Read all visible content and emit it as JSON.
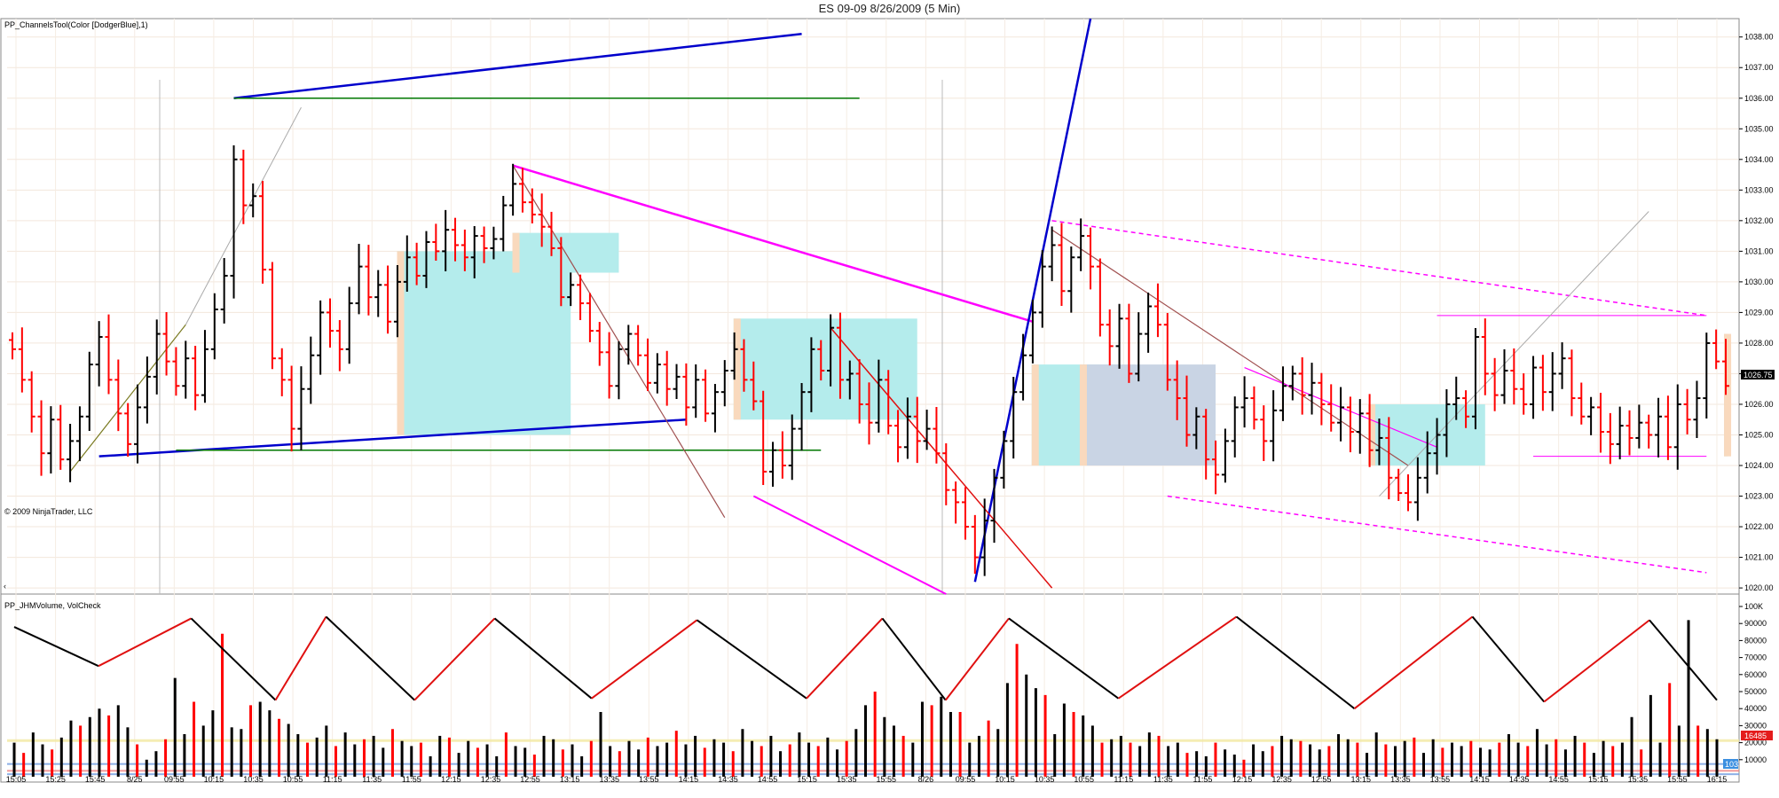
{
  "title": "ES 09-09  8/26/2009 (5 Min)",
  "price_panel": {
    "indicator_label": "PP_ChannelsTool(Color [DodgerBlue],1)",
    "copyright": "© 2009 NinjaTrader, LLC",
    "scroll_arrow": "‹",
    "current_price_badge": "1026.75"
  },
  "volume_panel": {
    "indicator_label": "PP_JHMVolume, VolCheck",
    "current_volume_badge": "16485",
    "corner_badge": "103"
  },
  "colors": {
    "up_bar": "#000000",
    "down_bar": "#ff0000",
    "zone_cyan": "#b4ecec",
    "zone_orange": "#f9d9bd",
    "zone_grey": "#c9d4e4",
    "channel_blue": "#0000cc",
    "channel_magenta": "#ff00ff",
    "channel_green": "#007700",
    "badge_red": "#e41c1c",
    "badge_black": "#000000",
    "vol_yellow_band": "#f3e9a0",
    "vol_blue_band": "#6f9be0",
    "vol_red_band": "#f08080"
  },
  "chart_data": [
    {
      "type": "candlestick",
      "series_name": "ES 09-09",
      "timeframe": "5 Min",
      "ylim": [
        1019.8,
        1038.6
      ],
      "y_ticks": [
        "1020.00",
        "1021.00",
        "1022.00",
        "1023.00",
        "1024.00",
        "1025.00",
        "1026.00",
        "1027.00",
        "1028.00",
        "1029.00",
        "1030.00",
        "1031.00",
        "1032.00",
        "1033.00",
        "1034.00",
        "1035.00",
        "1036.00",
        "1037.00",
        "1038.00"
      ],
      "x_tick_labels": [
        "15:05",
        "15:25",
        "15:45",
        "8/25",
        "09:55",
        "10:15",
        "10:35",
        "10:55",
        "11:15",
        "11:35",
        "11:55",
        "12:15",
        "12:35",
        "12:55",
        "13:15",
        "13:35",
        "13:55",
        "14:15",
        "14:35",
        "14:55",
        "15:15",
        "15:35",
        "15:55",
        "8/26",
        "09:55",
        "10:15",
        "10:35",
        "10:55",
        "11:15",
        "11:35",
        "11:55",
        "12:15",
        "12:35",
        "12:55",
        "13:15",
        "13:35",
        "13:55",
        "14:15",
        "14:35",
        "14:55",
        "15:15",
        "15:35",
        "15:55",
        "16:15"
      ],
      "close_path": [
        1027.8,
        1026.8,
        1025.6,
        1024.4,
        1025.5,
        1024.2,
        1024.8,
        1025.6,
        1027.3,
        1028.2,
        1026.8,
        1025.7,
        1024.7,
        1025.9,
        1026.9,
        1028.3,
        1027.4,
        1026.6,
        1027.5,
        1026.3,
        1027.8,
        1029.1,
        1030.2,
        1034.0,
        1032.5,
        1032.8,
        1030.4,
        1027.5,
        1026.8,
        1025.2,
        1026.5,
        1027.6,
        1029.0,
        1028.4,
        1027.8,
        1029.3,
        1030.5,
        1029.5,
        1029.9,
        1028.7,
        1030.0,
        1030.8,
        1030.2,
        1031.3,
        1031.0,
        1031.7,
        1031.2,
        1030.8,
        1031.5,
        1031.1,
        1031.4,
        1032.5,
        1033.2,
        1032.6,
        1032.2,
        1031.8,
        1031.1,
        1029.5,
        1029.9,
        1029.3,
        1028.4,
        1027.7,
        1026.6,
        1027.8,
        1028.3,
        1027.6,
        1026.7,
        1027.3,
        1026.5,
        1026.9,
        1025.9,
        1026.8,
        1025.7,
        1026.4,
        1027.1,
        1027.8,
        1026.8,
        1026.1,
        1023.8,
        1024.5,
        1024.0,
        1025.2,
        1026.4,
        1027.8,
        1027.1,
        1028.5,
        1026.8,
        1027.0,
        1026.0,
        1025.4,
        1026.8,
        1025.3,
        1024.6,
        1025.6,
        1024.8,
        1025.2,
        1024.4,
        1023.2,
        1022.8,
        1022.0,
        1021.0,
        1022.2,
        1023.6,
        1024.8,
        1026.4,
        1027.6,
        1029.0,
        1030.5,
        1031.2,
        1029.7,
        1030.8,
        1031.5,
        1030.5,
        1028.6,
        1027.9,
        1028.8,
        1027.0,
        1028.3,
        1029.2,
        1028.6,
        1026.8,
        1026.2,
        1025.0,
        1025.6,
        1024.2,
        1023.7,
        1024.8,
        1025.9,
        1026.2,
        1025.5,
        1024.8,
        1025.8,
        1026.6,
        1027.0,
        1026.3,
        1026.7,
        1026.0,
        1025.4,
        1025.9,
        1025.1,
        1025.7,
        1024.5,
        1024.9,
        1023.6,
        1023.1,
        1022.8,
        1023.6,
        1024.4,
        1025.0,
        1026.0,
        1026.2,
        1025.6,
        1028.2,
        1027.0,
        1026.3,
        1027.1,
        1026.5,
        1026.0,
        1027.2,
        1026.4,
        1027.0,
        1027.5,
        1026.2,
        1025.6,
        1025.9,
        1025.1,
        1024.7,
        1025.3,
        1024.9,
        1025.4,
        1025.0,
        1025.6,
        1024.6,
        1026.0,
        1025.5,
        1026.2,
        1028.0,
        1027.4,
        1026.6
      ]
    },
    {
      "type": "bar",
      "series_name": "Volume",
      "ylim": [
        0,
        100000
      ],
      "y_ticks": [
        "10000",
        "20000",
        "30000",
        "40000",
        "50000",
        "60000",
        "70000",
        "80000",
        "90000",
        "100K"
      ],
      "values_k": [
        20,
        14,
        26,
        19,
        16,
        23,
        33,
        30,
        35,
        40,
        36,
        42,
        29,
        19,
        10,
        15,
        22,
        58,
        25,
        44,
        30,
        39,
        84,
        29,
        28,
        42,
        44,
        39,
        34,
        31,
        25,
        20,
        23,
        30,
        18,
        26,
        19,
        22,
        24,
        17,
        28,
        21,
        18,
        20,
        12,
        24,
        23,
        14,
        21,
        17,
        19,
        12,
        26,
        18,
        17,
        13,
        24,
        22,
        16,
        19,
        12,
        21,
        38,
        18,
        15,
        21,
        16,
        23,
        18,
        20,
        27,
        19,
        24,
        17,
        22,
        20,
        15,
        28,
        21,
        18,
        24,
        15,
        19,
        26,
        20,
        18,
        23,
        16,
        21,
        28,
        42,
        50,
        35,
        30,
        24,
        20,
        44,
        42,
        47,
        38,
        38,
        20,
        24,
        33,
        28,
        55,
        78,
        60,
        52,
        48,
        25,
        43,
        38,
        36,
        30,
        20,
        22,
        24,
        20,
        18,
        26,
        24,
        18,
        20,
        14,
        15,
        12,
        20,
        16,
        13,
        10,
        19,
        15,
        18,
        24,
        22,
        21,
        19,
        16,
        18,
        25,
        22,
        20,
        14,
        26,
        19,
        18,
        21,
        23,
        14,
        22,
        17,
        20,
        18,
        21,
        17,
        16,
        20,
        25,
        20,
        18,
        28,
        19,
        22,
        16,
        24,
        20,
        14,
        21,
        18,
        20,
        35,
        16,
        48,
        20,
        55,
        30,
        92,
        30,
        28,
        22
      ]
    }
  ]
}
